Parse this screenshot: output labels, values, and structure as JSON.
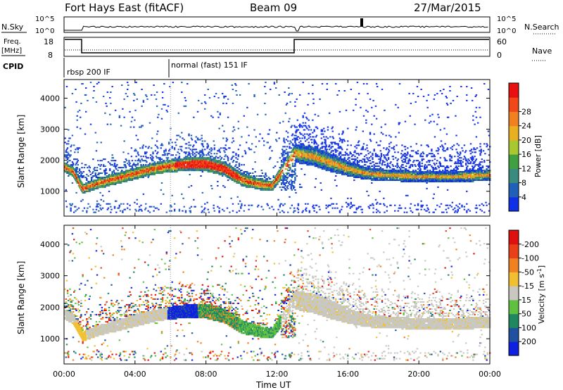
{
  "header": {
    "station": "Fort Hays East (fitACF)",
    "beam": "Beam 09",
    "date": "27/Mar/2015"
  },
  "top_panels": {
    "nsky_label": "N.Sky",
    "nsky_ticks": [
      "10^5",
      "10^0"
    ],
    "nsearch_label": "N.Search",
    "nsearch_ticks": [
      "10^5",
      "10^0"
    ],
    "freq_label": "Freq.",
    "freq_unit": "[MHz]",
    "freq_ticks": [
      "18",
      "8"
    ],
    "nave_label": "Nave",
    "nave_ticks": [
      "60",
      "0"
    ],
    "cpid_label": "CPID",
    "cpid_segments": [
      "rbsp 200 IF",
      "normal (fast) 151 IF"
    ]
  },
  "chart_data": [
    {
      "type": "heatmap",
      "title": "",
      "xlabel": "Time UT",
      "ylabel": "Slant Range [km]",
      "xlim": [
        0,
        24
      ],
      "ylim": [
        200,
        4600
      ],
      "x_ticks": [
        "00:00",
        "04:00",
        "08:00",
        "12:00",
        "16:00",
        "20:00",
        "00:00"
      ],
      "y_ticks": [
        "1000",
        "2000",
        "3000",
        "4000"
      ],
      "colorbar": {
        "label": "Power [dB]",
        "ticks": [
          "4",
          "8",
          "12",
          "16",
          "20",
          "24",
          "28"
        ],
        "colors": [
          "#1030e8",
          "#2060b8",
          "#3a8a80",
          "#40a040",
          "#a8c830",
          "#e8b020",
          "#f08020",
          "#f04818",
          "#e81010"
        ]
      },
      "bands": [
        {
          "t": 0.0,
          "center": 1750,
          "width": 260
        },
        {
          "t": 0.5,
          "center": 1600,
          "width": 280
        },
        {
          "t": 1.0,
          "center": 1050,
          "width": 260
        },
        {
          "t": 2.0,
          "center": 1250,
          "width": 280
        },
        {
          "t": 3.0,
          "center": 1400,
          "width": 300
        },
        {
          "t": 4.0,
          "center": 1550,
          "width": 320
        },
        {
          "t": 5.0,
          "center": 1700,
          "width": 320
        },
        {
          "t": 6.0,
          "center": 1800,
          "width": 340
        },
        {
          "t": 7.0,
          "center": 1850,
          "width": 380
        },
        {
          "t": 8.0,
          "center": 1850,
          "width": 400
        },
        {
          "t": 9.0,
          "center": 1700,
          "width": 380
        },
        {
          "t": 10.0,
          "center": 1350,
          "width": 360
        },
        {
          "t": 11.0,
          "center": 1200,
          "width": 300
        },
        {
          "t": 11.7,
          "center": 1150,
          "width": 260
        },
        {
          "t": 13.0,
          "center": 2200,
          "width": 500
        },
        {
          "t": 14.0,
          "center": 2100,
          "width": 520
        },
        {
          "t": 15.0,
          "center": 1900,
          "width": 500
        },
        {
          "t": 16.0,
          "center": 1700,
          "width": 400
        },
        {
          "t": 17.0,
          "center": 1550,
          "width": 340
        },
        {
          "t": 18.0,
          "center": 1500,
          "width": 320
        },
        {
          "t": 20.0,
          "center": 1450,
          "width": 300
        },
        {
          "t": 22.0,
          "center": 1450,
          "width": 300
        },
        {
          "t": 24.0,
          "center": 1500,
          "width": 320
        }
      ]
    },
    {
      "type": "heatmap",
      "title": "",
      "xlabel": "Time UT",
      "ylabel": "Slant Range [km]",
      "xlim": [
        0,
        24
      ],
      "ylim": [
        200,
        4600
      ],
      "x_ticks": [
        "00:00",
        "04:00",
        "08:00",
        "12:00",
        "16:00",
        "20:00",
        "00:00"
      ],
      "y_ticks": [
        "1000",
        "2000",
        "3000",
        "4000"
      ],
      "colorbar": {
        "label": "Velocity [m s^-1]",
        "ticks": [
          "200",
          "100",
          "50",
          "15",
          "-15",
          "-50",
          "-100",
          "-200"
        ],
        "colors": [
          "#1020e0",
          "#2050a0",
          "#208860",
          "#60c040",
          "#c8c8c0",
          "#f0c030",
          "#f08020",
          "#e84018",
          "#e01010"
        ]
      }
    }
  ]
}
